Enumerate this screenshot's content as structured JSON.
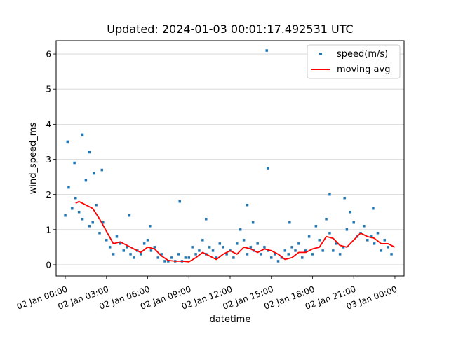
{
  "chart_data": {
    "type": "scatter",
    "title": "Updated: 2024-01-03 00:01:17.492531 UTC",
    "xlabel": "datetime",
    "ylabel": "wind_speed_ms",
    "x_tick_labels": [
      "02 Jan 00:00",
      "02 Jan 03:00",
      "02 Jan 06:00",
      "02 Jan 09:00",
      "02 Jan 12:00",
      "02 Jan 15:00",
      "02 Jan 18:00",
      "02 Jan 21:00",
      "03 Jan 00:00"
    ],
    "xlim": [
      "2024-01-01 23:20",
      "2024-01-03 00:40"
    ],
    "ylim": [
      -0.32,
      6.38
    ],
    "y_ticks": [
      0,
      1,
      2,
      3,
      4,
      5,
      6
    ],
    "grid": "horizontal",
    "legend": "top-right",
    "series": [
      {
        "name": "speed(m/s)",
        "kind": "scatter",
        "color": "#1f77b4",
        "x": [
          "2024-01-02 00:00",
          "2024-01-02 00:15",
          "2024-01-02 00:30",
          "2024-01-02 00:45",
          "2024-01-02 01:00",
          "2024-01-02 01:15",
          "2024-01-02 01:30",
          "2024-01-02 01:45",
          "2024-01-02 02:00",
          "2024-01-02 02:15",
          "2024-01-02 02:30",
          "2024-01-02 02:45",
          "2024-01-02 03:00",
          "2024-01-02 03:15",
          "2024-01-02 03:30",
          "2024-01-02 03:45",
          "2024-01-02 04:00",
          "2024-01-02 04:15",
          "2024-01-02 04:30",
          "2024-01-02 04:45",
          "2024-01-02 05:00",
          "2024-01-02 05:15",
          "2024-01-02 05:30",
          "2024-01-02 05:45",
          "2024-01-02 06:00",
          "2024-01-02 06:15",
          "2024-01-02 06:30",
          "2024-01-02 06:45",
          "2024-01-02 07:00",
          "2024-01-02 07:15",
          "2024-01-02 07:30",
          "2024-01-02 07:45",
          "2024-01-02 08:00",
          "2024-01-02 08:15",
          "2024-01-02 08:30",
          "2024-01-02 08:45",
          "2024-01-02 09:00",
          "2024-01-02 09:15",
          "2024-01-02 09:30",
          "2024-01-02 09:45",
          "2024-01-02 10:00",
          "2024-01-02 10:15",
          "2024-01-02 10:30",
          "2024-01-02 10:45",
          "2024-01-02 11:00",
          "2024-01-02 11:15",
          "2024-01-02 11:30",
          "2024-01-02 11:45",
          "2024-01-02 12:00",
          "2024-01-02 12:15",
          "2024-01-02 12:30",
          "2024-01-02 12:45",
          "2024-01-02 13:00",
          "2024-01-02 13:15",
          "2024-01-02 13:30",
          "2024-01-02 13:45",
          "2024-01-02 14:00",
          "2024-01-02 14:15",
          "2024-01-02 14:30",
          "2024-01-02 14:45",
          "2024-01-02 15:00",
          "2024-01-02 15:15",
          "2024-01-02 15:30",
          "2024-01-02 15:45",
          "2024-01-02 16:00",
          "2024-01-02 16:15",
          "2024-01-02 16:30",
          "2024-01-02 16:45",
          "2024-01-02 17:00",
          "2024-01-02 17:15",
          "2024-01-02 17:30",
          "2024-01-02 17:45",
          "2024-01-02 18:00",
          "2024-01-02 18:15",
          "2024-01-02 18:30",
          "2024-01-02 18:45",
          "2024-01-02 19:00",
          "2024-01-02 19:15",
          "2024-01-02 19:30",
          "2024-01-02 19:45",
          "2024-01-02 20:00",
          "2024-01-02 20:15",
          "2024-01-02 20:30",
          "2024-01-02 20:45",
          "2024-01-02 21:00",
          "2024-01-02 21:15",
          "2024-01-02 21:30",
          "2024-01-02 21:45",
          "2024-01-02 22:00",
          "2024-01-02 22:15",
          "2024-01-02 22:30",
          "2024-01-02 22:45",
          "2024-01-02 23:00",
          "2024-01-02 23:15",
          "2024-01-02 23:30",
          "2024-01-02 23:45",
          "2024-01-02 01:15",
          "2024-01-02 01:45",
          "2024-01-02 00:10",
          "2024-01-02 02:05",
          "2024-01-02 14:40",
          "2024-01-02 14:45",
          "2024-01-02 04:40",
          "2024-01-02 10:15",
          "2024-01-02 13:15",
          "2024-01-02 19:15",
          "2024-01-02 20:20",
          "2024-01-02 13:40",
          "2024-01-02 06:10",
          "2024-01-02 08:20",
          "2024-01-02 16:20",
          "2024-01-02 22:25",
          "2024-01-02 00:40",
          "2024-01-02 02:40"
        ],
        "y": [
          1.4,
          2.2,
          1.6,
          1.9,
          1.5,
          1.3,
          2.4,
          1.1,
          1.2,
          1.7,
          0.9,
          1.2,
          0.7,
          0.5,
          0.3,
          0.8,
          0.6,
          0.4,
          0.5,
          0.3,
          0.2,
          0.4,
          0.3,
          0.6,
          0.7,
          0.4,
          0.5,
          0.2,
          0.3,
          0.1,
          0.1,
          0.2,
          0.1,
          0.3,
          0.1,
          0.2,
          0.2,
          0.5,
          0.3,
          0.4,
          0.7,
          0.3,
          0.5,
          0.4,
          0.2,
          0.6,
          0.5,
          0.3,
          0.4,
          0.2,
          0.6,
          1.0,
          0.7,
          0.3,
          0.5,
          0.4,
          0.6,
          0.3,
          0.5,
          0.4,
          0.2,
          0.3,
          0.1,
          0.2,
          0.4,
          0.3,
          0.5,
          0.4,
          0.6,
          0.2,
          0.4,
          0.8,
          0.3,
          1.1,
          0.7,
          0.4,
          1.3,
          0.9,
          0.4,
          0.6,
          0.3,
          0.5,
          1.0,
          1.5,
          1.2,
          0.8,
          0.9,
          1.1,
          0.7,
          0.8,
          0.6,
          0.9,
          0.4,
          0.7,
          0.5,
          0.3,
          3.7,
          3.2,
          3.5,
          2.6,
          6.1,
          2.75,
          1.4,
          1.3,
          1.7,
          2.0,
          1.9,
          1.2,
          1.1,
          1.8,
          1.2,
          1.6,
          2.9,
          2.7
        ]
      },
      {
        "name": "moving avg",
        "kind": "line",
        "color": "#ff0000",
        "x": [
          "2024-01-02 00:45",
          "2024-01-02 01:00",
          "2024-01-02 01:30",
          "2024-01-02 02:00",
          "2024-01-02 02:30",
          "2024-01-02 03:00",
          "2024-01-02 03:30",
          "2024-01-02 04:00",
          "2024-01-02 04:30",
          "2024-01-02 05:00",
          "2024-01-02 05:30",
          "2024-01-02 06:00",
          "2024-01-02 06:30",
          "2024-01-02 07:00",
          "2024-01-02 07:30",
          "2024-01-02 08:00",
          "2024-01-02 08:30",
          "2024-01-02 09:00",
          "2024-01-02 09:30",
          "2024-01-02 10:00",
          "2024-01-02 10:30",
          "2024-01-02 11:00",
          "2024-01-02 11:30",
          "2024-01-02 12:00",
          "2024-01-02 12:30",
          "2024-01-02 13:00",
          "2024-01-02 13:30",
          "2024-01-02 14:00",
          "2024-01-02 14:30",
          "2024-01-02 15:00",
          "2024-01-02 15:30",
          "2024-01-02 16:00",
          "2024-01-02 16:30",
          "2024-01-02 17:00",
          "2024-01-02 17:30",
          "2024-01-02 18:00",
          "2024-01-02 18:30",
          "2024-01-02 19:00",
          "2024-01-02 19:30",
          "2024-01-02 20:00",
          "2024-01-02 20:30",
          "2024-01-02 21:00",
          "2024-01-02 21:30",
          "2024-01-02 22:00",
          "2024-01-02 22:30",
          "2024-01-02 23:00",
          "2024-01-02 23:30",
          "2024-01-02 23:59"
        ],
        "y": [
          1.75,
          1.8,
          1.7,
          1.6,
          1.3,
          0.95,
          0.6,
          0.65,
          0.55,
          0.45,
          0.35,
          0.5,
          0.45,
          0.25,
          0.12,
          0.1,
          0.1,
          0.08,
          0.2,
          0.35,
          0.25,
          0.15,
          0.3,
          0.4,
          0.3,
          0.5,
          0.45,
          0.35,
          0.45,
          0.4,
          0.3,
          0.15,
          0.2,
          0.35,
          0.35,
          0.45,
          0.5,
          0.8,
          0.75,
          0.55,
          0.5,
          0.7,
          0.9,
          0.8,
          0.75,
          0.6,
          0.6,
          0.5
        ]
      }
    ]
  }
}
